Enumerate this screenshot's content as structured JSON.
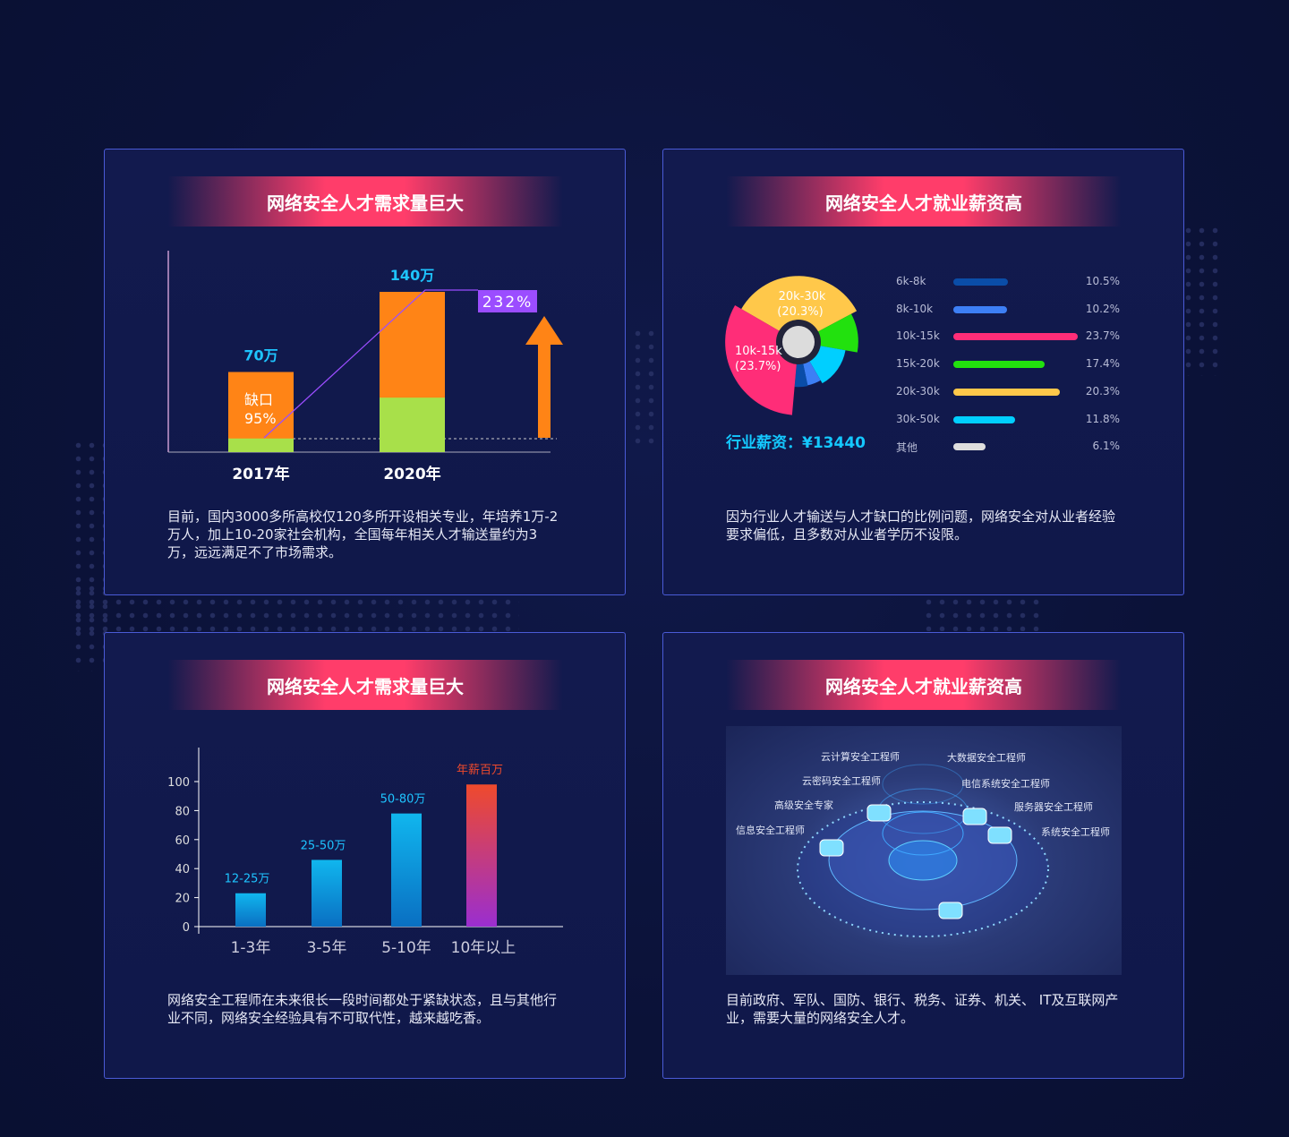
{
  "cards": [
    {
      "title": "网络安全人才需求量巨大",
      "description": "目前，国内3000多所高校仅120多所开设相关专业，年培养1万-2万人，加上10-20家社会机构，全国每年相关人才输送量约为3万，远远满足不了市场需求。"
    },
    {
      "title": "网络安全人才就业薪资高",
      "description": "因为行业人才输送与人才缺口的比例问题，网络安全对从业者经验要求偏低，且多数对从业者学历不设限。",
      "salary_label": "行业薪资：",
      "salary_value": "¥13440"
    },
    {
      "title": "网络安全人才需求量巨大",
      "description": "网络安全工程师在未来很长一段时间都处于紧缺状态，且与其他行业不同，网络安全经验具有不可取代性，越来越吃香。"
    },
    {
      "title": "网络安全人才就业薪资高",
      "description": "目前政府、军队、国防、银行、税务、证券、机关、 IT及互联网产业，需要大量的网络安全人才。",
      "roles": [
        "云计算安全工程师",
        "大数据安全工程师",
        "云密码安全工程师",
        "电信系统安全工程师",
        "高级安全专家",
        "服务器安全工程师",
        "信息安全工程师",
        "系统安全工程师"
      ]
    }
  ],
  "chart_data": [
    {
      "type": "bar",
      "categories": [
        "2017年",
        "2020年"
      ],
      "values": [
        70,
        140
      ],
      "data_labels": [
        "70万",
        "140万"
      ],
      "gap_label": "缺口",
      "gap_value": "95%",
      "growth_label": "232%",
      "colors": {
        "bar": "#ff8416",
        "supply": "#a8e04a",
        "line": "#9b4dff",
        "badge": "#9b4dff"
      }
    },
    {
      "type": "pie",
      "variant": "rose",
      "categories": [
        "6k-8k",
        "8k-10k",
        "10k-15k",
        "15k-20k",
        "20k-30k",
        "30k-50k",
        "其他"
      ],
      "values": [
        10.5,
        10.2,
        23.7,
        17.4,
        20.3,
        11.8,
        6.1
      ],
      "labels": [
        "10.5%",
        "10.2%",
        "23.7%",
        "17.4%",
        "20.3%",
        "11.8%",
        "6.1%"
      ],
      "slice_labels": [
        {
          "name": "20k-30k",
          "value": "(20.3%)"
        },
        {
          "name": "10k-15k",
          "value": "(23.7%)"
        }
      ],
      "colors": [
        "#0a4da8",
        "#3d7ff5",
        "#ff2d78",
        "#22e10e",
        "#ffc84a",
        "#00cfff",
        "#dedede"
      ]
    },
    {
      "type": "bar",
      "categories": [
        "1-3年",
        "3-5年",
        "5-10年",
        "10年以上"
      ],
      "values": [
        23,
        46,
        78,
        98
      ],
      "data_labels": [
        "12-25万",
        "25-50万",
        "50-80万",
        "年薪百万"
      ],
      "yticks": [
        0,
        20,
        40,
        60,
        80,
        100
      ],
      "ylim": [
        0,
        100
      ],
      "colors": {
        "bar": "#0fa6e6",
        "top": "#e8432e"
      }
    }
  ]
}
